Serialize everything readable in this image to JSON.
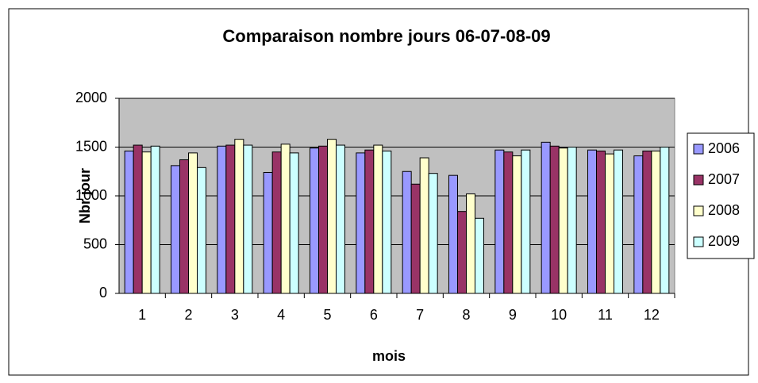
{
  "chart_data": {
    "type": "bar",
    "title": "Comparaison nombre jours 06-07-08-09",
    "x_label": "mois",
    "y_label": "Nbr jour",
    "categories": [
      "1",
      "2",
      "3",
      "4",
      "5",
      "6",
      "7",
      "8",
      "9",
      "10",
      "11",
      "12"
    ],
    "series": [
      {
        "name": "2006",
        "color": "#9999ff",
        "values": [
          1460,
          1310,
          1510,
          1240,
          1490,
          1440,
          1250,
          1210,
          1470,
          1550,
          1470,
          1410
        ]
      },
      {
        "name": "2007",
        "color": "#993366",
        "values": [
          1520,
          1370,
          1520,
          1450,
          1510,
          1470,
          1120,
          840,
          1450,
          1510,
          1460,
          1460
        ]
      },
      {
        "name": "2008",
        "color": "#ffffcc",
        "values": [
          1450,
          1440,
          1580,
          1530,
          1580,
          1520,
          1390,
          1020,
          1410,
          1490,
          1430,
          1460
        ]
      },
      {
        "name": "2009",
        "color": "#ccffff",
        "values": [
          1510,
          1290,
          1520,
          1440,
          1520,
          1460,
          1230,
          770,
          1470,
          1500,
          1470,
          1500
        ]
      }
    ],
    "ylim": [
      0,
      2000
    ],
    "yticks": [
      0,
      500,
      1000,
      1500,
      2000
    ],
    "grid": true,
    "legend": "right",
    "plot_background": "#c0c0c0"
  }
}
